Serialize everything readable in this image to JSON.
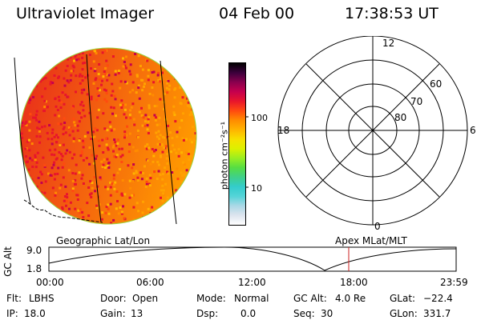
{
  "header": {
    "instrument": "Ultraviolet Imager",
    "date": "04 Feb 00",
    "time": "17:38:53 UT"
  },
  "colorbar": {
    "unit_label": "photon cm⁻²s⁻¹",
    "tick_100": "100",
    "tick_10": "10",
    "colors": [
      "#ffffff",
      "#dde4ee",
      "#aad8e6",
      "#55d4d8",
      "#33cccc",
      "#3fd08a",
      "#55dd44",
      "#99ee22",
      "#ddf000",
      "#f7e000",
      "#ffb400",
      "#ff8c00",
      "#ff4a10",
      "#e8152c",
      "#c5004e",
      "#8a004e",
      "#3c003c",
      "#000000"
    ]
  },
  "polar_grid": {
    "mlt_12": "12",
    "mlt_18": "18",
    "mlt_6": "6",
    "mlt_0": "0",
    "lat_60": "60",
    "lat_70": "70",
    "lat_80": "80"
  },
  "alt_panel": {
    "left_title": "Geographic Lat/Lon",
    "right_title": "Apex MLat/MLT",
    "y_label": "GC Alt",
    "y_tick_top": "9.0",
    "y_tick_bottom": "1.8",
    "x_ticks": [
      "00:00",
      "06:00",
      "12:00",
      "18:00",
      "23:59"
    ],
    "marker_color": "#cc2222"
  },
  "footer": {
    "flt_label": "Flt:",
    "flt_value": "LBHS",
    "ip_label": "IP:",
    "ip_value": "18.0",
    "door_label": "Door:",
    "door_value": "Open",
    "gain_label": "Gain:",
    "gain_value": "13",
    "mode_label": "Mode:",
    "mode_value": "Normal",
    "dsp_label": "Dsp:",
    "dsp_value": "0.0",
    "gcalt_label": "GC Alt:",
    "gcalt_value": "4.0 Re",
    "seq_label": "Seq:",
    "seq_value": "30",
    "glat_label": "GLat:",
    "glat_value": "−22.4",
    "glon_label": "GLon:",
    "glon_value": "331.7"
  }
}
